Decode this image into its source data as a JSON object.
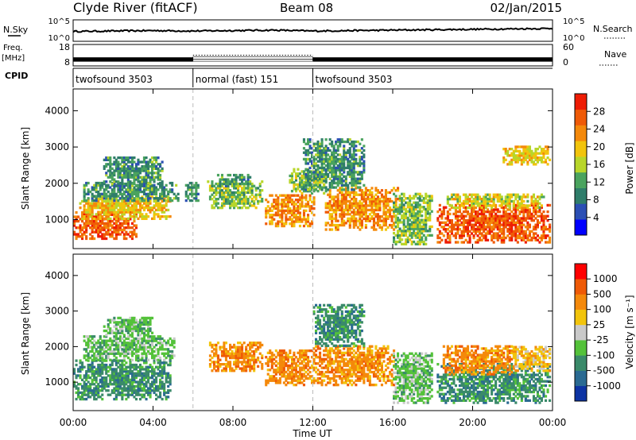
{
  "header": {
    "station": "Clyde River (fitACF)",
    "beam": "Beam 08",
    "date": "02/Jan/2015"
  },
  "strip_nsky": {
    "left_label": "N.Sky",
    "left_ticks": [
      "10^5",
      "10^0"
    ],
    "right_label": "N.Search",
    "right_ticks": [
      "10^5",
      "10^0"
    ]
  },
  "strip_freq": {
    "left_label_1": "Freq.",
    "left_label_2": "[MHz]",
    "left_ticks": [
      "18",
      "8"
    ],
    "right_label": "Nave",
    "right_ticks": [
      "60",
      "0"
    ]
  },
  "cpid": {
    "label": "CPID",
    "segments": [
      {
        "name": "twofsound 3503",
        "start_hour": 0,
        "end_hour": 6
      },
      {
        "name": "normal (fast) 151",
        "start_hour": 6,
        "end_hour": 12
      },
      {
        "name": "twofsound 3503",
        "start_hour": 12,
        "end_hour": 24
      }
    ]
  },
  "axes": {
    "ylabel": "Slant Range [km]",
    "xlabel": "Time UT",
    "x_ticks": [
      "00:00",
      "04:00",
      "08:00",
      "12:00",
      "16:00",
      "20:00",
      "00:00"
    ],
    "y_ticks": [
      "1000",
      "2000",
      "3000",
      "4000"
    ]
  },
  "colorbars": {
    "power": {
      "label": "Power [dB]",
      "ticks": [
        "28",
        "24",
        "20",
        "16",
        "12",
        "8",
        "4"
      ],
      "colors": [
        "#0000ff",
        "#2b4fb4",
        "#2f7d6a",
        "#4aa35e",
        "#b8d62a",
        "#f2c40c",
        "#f4890b",
        "#ef5a07",
        "#ee1c04"
      ]
    },
    "velocity": {
      "label": "Velocity [m s⁻¹]",
      "ticks": [
        "1000",
        "500",
        "100",
        "25",
        "-25",
        "-100",
        "-500",
        "-1000"
      ],
      "colors": [
        "#0d33a3",
        "#2a6a92",
        "#3a8a6a",
        "#54c23a",
        "#c9c9c9",
        "#f2c40c",
        "#f4890b",
        "#ef5a07",
        "#ff0000"
      ]
    }
  },
  "chart_data": [
    {
      "type": "line",
      "title": "N.Sky / N.Search",
      "x_range_hours": [
        0,
        24
      ],
      "ylim_log10": [
        0,
        5
      ],
      "x": [
        0,
        2,
        4,
        6,
        8,
        10,
        12,
        14,
        16,
        18,
        20,
        22,
        24
      ],
      "series": [
        {
          "name": "N.Sky",
          "values_log10": [
            2.3,
            2.4,
            2.5,
            2.4,
            2.5,
            2.6,
            2.4,
            2.5,
            2.6,
            2.7,
            2.8,
            2.9,
            3.0
          ]
        }
      ]
    },
    {
      "type": "line",
      "title": "Freq. / Nave",
      "x_range_hours": [
        0,
        24
      ],
      "ylim_mhz": [
        8,
        18
      ],
      "series": [
        {
          "name": "Freq.",
          "segments": [
            {
              "start_hour": 0,
              "end_hour": 6,
              "low": 10.0,
              "high": 12.0
            },
            {
              "start_hour": 6,
              "end_hour": 12,
              "low": 10.2,
              "high": 12.2
            },
            {
              "start_hour": 12,
              "end_hour": 24,
              "low": 10.0,
              "high": 12.0
            }
          ]
        },
        {
          "name": "Nave",
          "segments": [
            {
              "start_hour": 6,
              "end_hour": 12,
              "value": 30
            }
          ]
        }
      ]
    },
    {
      "type": "heatmap",
      "quantity": "Power [dB]",
      "x_range_hours": [
        0,
        24
      ],
      "ylim_km": [
        200,
        4600
      ],
      "clim_db": [
        0,
        32
      ],
      "regions": [
        {
          "t0": 0.0,
          "t1": 3.2,
          "r0": 450,
          "r1": 1200,
          "level": 28
        },
        {
          "t0": 0.3,
          "t1": 4.8,
          "r0": 1000,
          "r1": 1650,
          "level": 20
        },
        {
          "t0": 0.5,
          "t1": 5.2,
          "r0": 1500,
          "r1": 2000,
          "level": 10
        },
        {
          "t0": 1.5,
          "t1": 4.5,
          "r0": 1900,
          "r1": 2700,
          "level": 10
        },
        {
          "t0": 5.6,
          "t1": 6.2,
          "r0": 1500,
          "r1": 2000,
          "level": 10
        },
        {
          "t0": 6.7,
          "t1": 9.4,
          "r0": 1300,
          "r1": 2050,
          "level": 14
        },
        {
          "t0": 7.2,
          "t1": 8.8,
          "r0": 1900,
          "r1": 2250,
          "level": 10
        },
        {
          "t0": 9.6,
          "t1": 12.0,
          "r0": 800,
          "r1": 1700,
          "level": 24
        },
        {
          "t0": 10.8,
          "t1": 12.6,
          "r0": 1700,
          "r1": 2400,
          "level": 14
        },
        {
          "t0": 12.6,
          "t1": 16.2,
          "r0": 700,
          "r1": 1850,
          "level": 24
        },
        {
          "t0": 11.5,
          "t1": 14.5,
          "r0": 1800,
          "r1": 3200,
          "level": 10
        },
        {
          "t0": 16.0,
          "t1": 18.0,
          "r0": 300,
          "r1": 1700,
          "level": 14
        },
        {
          "t0": 18.2,
          "t1": 23.9,
          "r0": 350,
          "r1": 1400,
          "level": 28
        },
        {
          "t0": 18.6,
          "t1": 23.6,
          "r0": 1300,
          "r1": 1700,
          "level": 18
        },
        {
          "t0": 21.5,
          "t1": 23.9,
          "r0": 2500,
          "r1": 3000,
          "level": 20
        }
      ]
    },
    {
      "type": "heatmap",
      "quantity": "Velocity [m s⁻¹]",
      "x_range_hours": [
        0,
        24
      ],
      "ylim_km": [
        200,
        4600
      ],
      "regions": [
        {
          "t0": 0.0,
          "t1": 4.8,
          "r0": 500,
          "r1": 1600,
          "velocity": 100
        },
        {
          "t0": 0.5,
          "t1": 5.0,
          "r0": 1600,
          "r1": 2300,
          "velocity": 25
        },
        {
          "t0": 1.5,
          "t1": 4.0,
          "r0": 2300,
          "r1": 2800,
          "velocity": 25
        },
        {
          "t0": 6.8,
          "t1": 9.4,
          "r0": 1300,
          "r1": 2100,
          "velocity": -500
        },
        {
          "t0": 9.6,
          "t1": 12.0,
          "r0": 900,
          "r1": 1900,
          "velocity": -500
        },
        {
          "t0": 12.0,
          "t1": 16.0,
          "r0": 900,
          "r1": 2000,
          "velocity": -500
        },
        {
          "t0": 12.0,
          "t1": 14.5,
          "r0": 2000,
          "r1": 3200,
          "velocity": 100
        },
        {
          "t0": 16.0,
          "t1": 18.0,
          "r0": 400,
          "r1": 1800,
          "velocity": 25
        },
        {
          "t0": 18.2,
          "t1": 23.9,
          "r0": 400,
          "r1": 1500,
          "velocity": 100
        },
        {
          "t0": 18.5,
          "t1": 22.0,
          "r0": 1200,
          "r1": 2000,
          "velocity": -500
        },
        {
          "t0": 22.0,
          "t1": 23.9,
          "r0": 1300,
          "r1": 2000,
          "velocity": -100
        }
      ]
    }
  ]
}
